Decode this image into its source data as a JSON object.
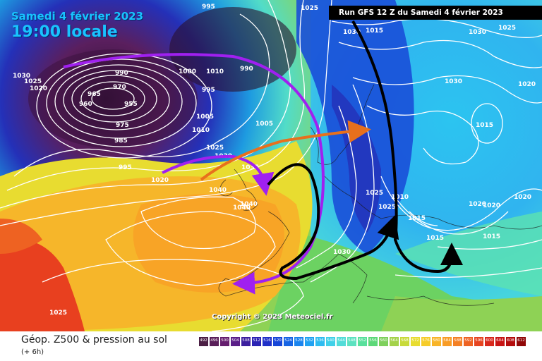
{
  "header": {
    "date": "Samedi 4 février 2023",
    "time": "19:00 locale",
    "run": "Run GFS 12 Z du Samedi 4 février 2023"
  },
  "copyright": "Copyright © 2023 Meteociel.fr",
  "legend": {
    "title": "Géop. Z500 & pression au sol",
    "subtitle": "(+ 6h)",
    "scale_values": [
      "492",
      "496",
      "500",
      "504",
      "508",
      "512",
      "516",
      "520",
      "524",
      "528",
      "532",
      "536",
      "540",
      "544",
      "548",
      "552",
      "556",
      "560",
      "564",
      "568",
      "572",
      "576",
      "580",
      "584",
      "588",
      "592",
      "596",
      "600",
      "604",
      "608",
      "612"
    ],
    "scale_colors": [
      "#4b1f44",
      "#5a1f5a",
      "#651d6e",
      "#5a1e88",
      "#3c1f9e",
      "#2b23b4",
      "#1f30c8",
      "#1646d8",
      "#1664e4",
      "#1a84ee",
      "#20a2f2",
      "#2ebcf0",
      "#40d0e8",
      "#52dcd8",
      "#5ce2c0",
      "#58e09c",
      "#5cd878",
      "#7ed05c",
      "#a4d24a",
      "#c8da3a",
      "#e8dc30",
      "#f6cc2a",
      "#f8b428",
      "#f89c26",
      "#f48024",
      "#ee6222",
      "#e64420",
      "#d8281c",
      "#c81414",
      "#b40c0c",
      "#900808"
    ]
  },
  "isobar_labels": [
    "995",
    "1025",
    "1030",
    "1025",
    "1020",
    "1000",
    "1010",
    "990",
    "990",
    "965",
    "970",
    "960",
    "955",
    "995",
    "975",
    "985",
    "1005",
    "1010",
    "1005",
    "1025",
    "1030",
    "995",
    "1020",
    "1035",
    "1040",
    "1040",
    "1040",
    "1025",
    "1030",
    "1015",
    "1030",
    "1025",
    "1030",
    "1020",
    "1015",
    "1020",
    "1010",
    "1015",
    "1015",
    "1020",
    "1025",
    "1020",
    "1030",
    "1015",
    "1025"
  ],
  "colors": {
    "arrow_purple": "#a020f0",
    "arrow_orange": "#e8701c",
    "arrow_black": "#000000"
  }
}
